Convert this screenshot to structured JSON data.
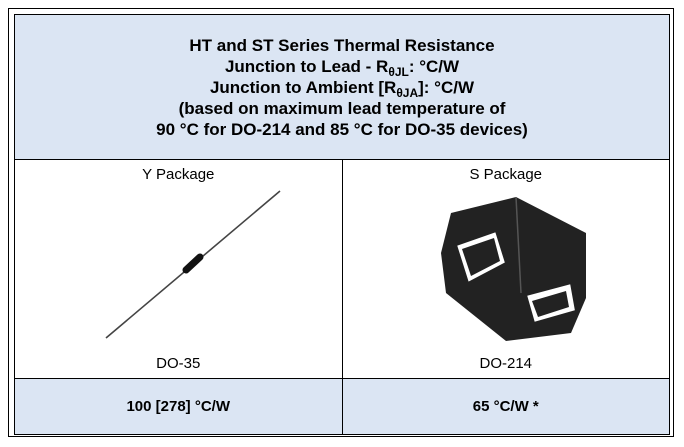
{
  "header": {
    "title": "HT and ST Series Thermal Resistance",
    "lead_line": {
      "text": "Junction to Lead - R",
      "subscript": "θJL",
      "suffix": ": °C/W"
    },
    "ambient_line": {
      "text": "Junction to Ambient [R",
      "subscript": "θJA",
      "suffix": "]: °C/W"
    },
    "note_line1": "(based on maximum lead temperature of",
    "note_line2": "90 °C for DO-214 and 85 °C for DO-35 devices)"
  },
  "table": {
    "columns": [
      {
        "name": "Y Package",
        "package": "DO-35",
        "value": "100 [278] °C/W"
      },
      {
        "name": "S Package",
        "package": "DO-214",
        "value": "65 °C/W *"
      }
    ]
  }
}
